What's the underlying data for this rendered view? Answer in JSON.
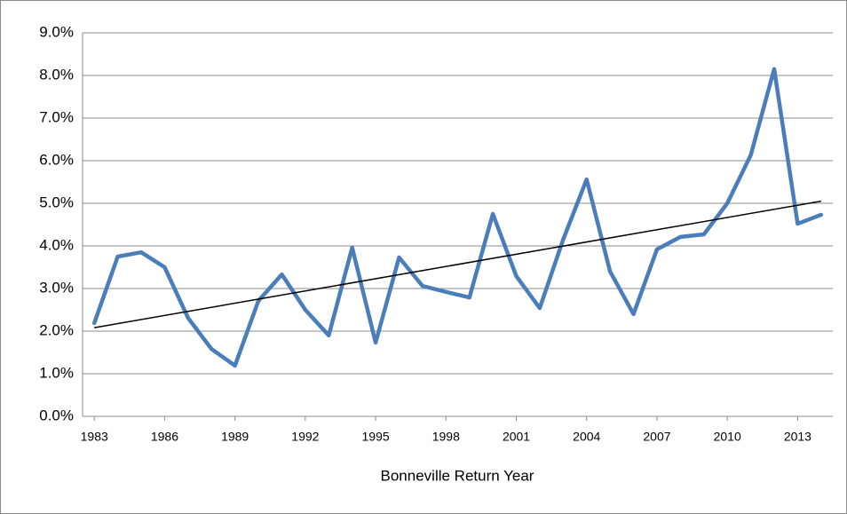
{
  "chart_data": {
    "type": "line",
    "x_label": "Bonneville Return Year",
    "categories": [
      "1983",
      null,
      null,
      "1986",
      null,
      null,
      "1989",
      null,
      null,
      "1992",
      null,
      null,
      "1995",
      null,
      null,
      "1998",
      null,
      null,
      "2001",
      null,
      null,
      "2004",
      null,
      null,
      "2007",
      null,
      null,
      "2010",
      null,
      null,
      "2013",
      null
    ],
    "values": [
      2.19,
      3.75,
      3.85,
      3.5,
      2.31,
      1.58,
      1.19,
      2.71,
      3.33,
      2.5,
      1.9,
      3.96,
      1.73,
      3.73,
      3.06,
      2.92,
      2.79,
      4.75,
      3.29,
      2.54,
      4.15,
      5.56,
      3.4,
      2.4,
      3.92,
      4.21,
      4.27,
      5.0,
      6.13,
      8.15,
      4.52,
      4.73
    ],
    "color": "#4a7ebb",
    "trend": {
      "start": 2.08,
      "end": 5.05,
      "color": "#000000"
    },
    "ylim": [
      0,
      9
    ],
    "yticks": [
      {
        "value": 0,
        "label": "0.0%"
      },
      {
        "value": 1,
        "label": "1.0%"
      },
      {
        "value": 2,
        "label": "2.0%"
      },
      {
        "value": 3,
        "label": "3.0%"
      },
      {
        "value": 4,
        "label": "4.0%"
      },
      {
        "value": 5,
        "label": "5.0%"
      },
      {
        "value": 6,
        "label": "6.0%"
      },
      {
        "value": 7,
        "label": "7.0%"
      },
      {
        "value": 8,
        "label": "8.0%"
      },
      {
        "value": 9,
        "label": "9.0%"
      }
    ],
    "grid": true
  }
}
